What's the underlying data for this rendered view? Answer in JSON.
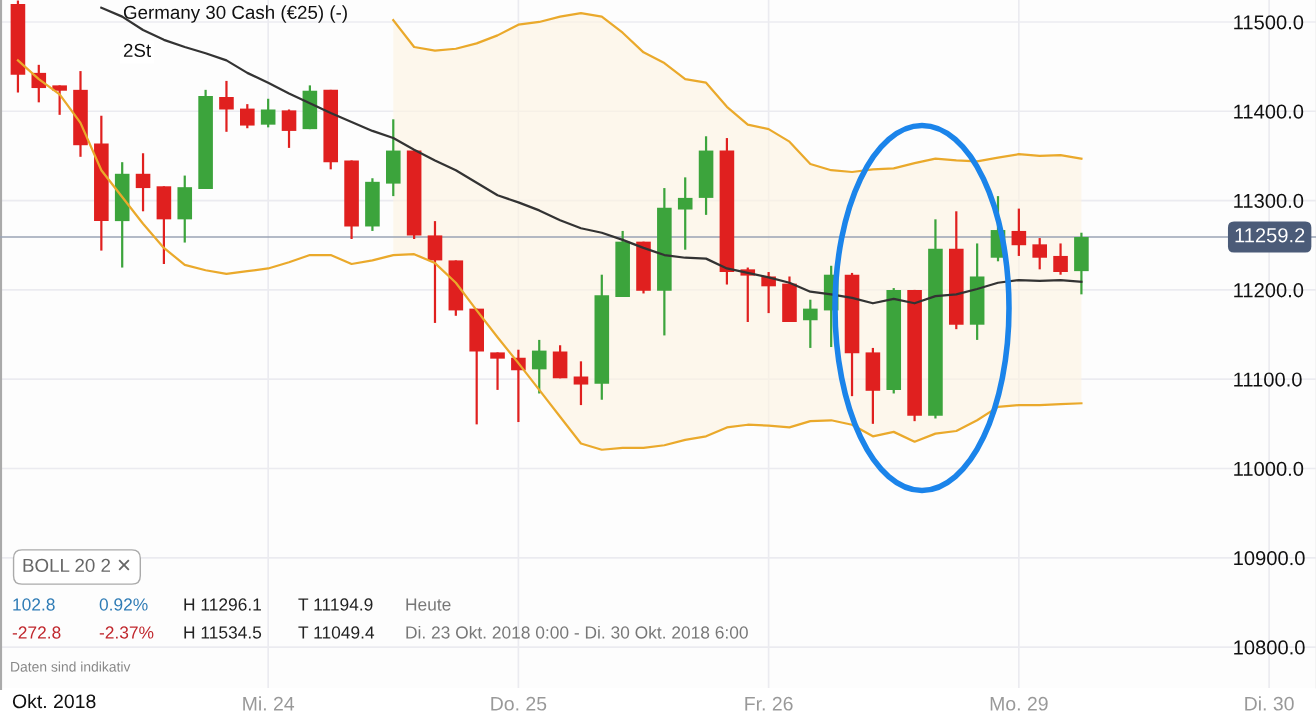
{
  "chart_data": {
    "type": "candlestick",
    "title": "Germany 30 Cash (€25) (-)",
    "subtitle": "2St",
    "categories": [
      null,
      null,
      null,
      null,
      null,
      null,
      null,
      null,
      null,
      null,
      null,
      null,
      "Mi. 24",
      null,
      null,
      null,
      null,
      null,
      null,
      null,
      null,
      null,
      null,
      null,
      "Do. 25",
      null,
      null,
      null,
      null,
      null,
      null,
      null,
      null,
      null,
      null,
      null,
      "Fr. 26",
      null,
      null,
      null,
      null,
      null,
      null,
      null,
      null,
      null,
      null,
      null,
      "Mo. 29",
      null,
      null,
      null,
      null,
      null,
      null,
      null,
      null,
      null,
      null,
      null,
      "Di. 30"
    ],
    "ohlc": [
      [
        11520,
        11524,
        11421,
        11441
      ],
      [
        11443,
        11452,
        11410,
        11426
      ],
      [
        11429,
        11429,
        11396,
        11423
      ],
      [
        11424,
        11445,
        11349,
        11362
      ],
      [
        11364,
        11395,
        11244,
        11277
      ],
      [
        11277,
        11343,
        11225,
        11330
      ],
      [
        11330,
        11353,
        11288,
        11314
      ],
      [
        11316,
        11316,
        11229,
        11279
      ],
      [
        11279,
        11328,
        11253,
        11315
      ],
      [
        11313,
        11424,
        11313,
        11417
      ],
      [
        11416,
        11434,
        11377,
        11402
      ],
      [
        11403,
        11408,
        11381,
        11384
      ],
      [
        11385,
        11414,
        11382,
        11402
      ],
      [
        11401,
        11402,
        11359,
        11378
      ],
      [
        11380,
        11429,
        11380,
        11423
      ],
      [
        11424,
        11424,
        11335,
        11343
      ],
      [
        11345,
        11345,
        11257,
        11271
      ],
      [
        11271,
        11325,
        11266,
        11321
      ],
      [
        11319,
        11391,
        11305,
        11356
      ],
      [
        11356,
        11356,
        11257,
        11261
      ],
      [
        11261,
        11277,
        11163,
        11233
      ],
      [
        11233,
        11233,
        11171,
        11177
      ],
      [
        11179,
        11179,
        11049.4,
        11131
      ],
      [
        11130,
        11130,
        11088,
        11123
      ],
      [
        11124,
        11133,
        11052,
        11110
      ],
      [
        11111,
        11144,
        11084,
        11132
      ],
      [
        11131,
        11138,
        11101,
        11101
      ],
      [
        11103,
        11120,
        11071,
        11094
      ],
      [
        11095,
        11217,
        11077,
        11194
      ],
      [
        11192,
        11266,
        11192,
        11254
      ],
      [
        11254,
        11254,
        11196,
        11199
      ],
      [
        11199,
        11314,
        11149,
        11292
      ],
      [
        11290,
        11326,
        11245,
        11303
      ],
      [
        11303,
        11372,
        11284,
        11356
      ],
      [
        11356,
        11370,
        11206,
        11220
      ],
      [
        11223,
        11225,
        11164,
        11216
      ],
      [
        11215,
        11220,
        11174,
        11204
      ],
      [
        11207,
        11215,
        11164,
        11164
      ],
      [
        11166,
        11189,
        11135,
        11179
      ],
      [
        11177,
        11227,
        11136,
        11217
      ],
      [
        11217,
        11219,
        11081,
        11129
      ],
      [
        11130,
        11135,
        11050,
        11087
      ],
      [
        11088,
        11202,
        11084,
        11200
      ],
      [
        11200,
        11200,
        11053,
        11059
      ],
      [
        11059,
        11279,
        11056,
        11246
      ],
      [
        11246,
        11288,
        11156,
        11161
      ],
      [
        11161,
        11252,
        11144,
        11215
      ],
      [
        11236,
        11305,
        11232,
        11267
      ],
      [
        11266,
        11291,
        11238,
        11250
      ],
      [
        11251,
        11258,
        11223,
        11236
      ],
      [
        11238,
        11252,
        11217,
        11220
      ],
      [
        11221,
        11264,
        11195,
        11259.2
      ],
      null,
      null,
      null,
      null,
      null,
      null,
      null,
      null,
      null
    ],
    "colors": [
      "#e0201f",
      "#e0201f",
      "#e0201f",
      "#e0201f",
      "#e0201f",
      "#3ca43c",
      "#e0201f",
      "#e0201f",
      "#3ca43c",
      "#3ca43c",
      "#e0201f",
      "#e0201f",
      "#3ca43c",
      "#e0201f",
      "#3ca43c",
      "#e0201f",
      "#e0201f",
      "#3ca43c",
      "#3ca43c",
      "#e0201f",
      "#e0201f",
      "#e0201f",
      "#e0201f",
      "#e0201f",
      "#e0201f",
      "#3ca43c",
      "#e0201f",
      "#e0201f",
      "#3ca43c",
      "#3ca43c",
      "#e0201f",
      "#3ca43c",
      "#3ca43c",
      "#3ca43c",
      "#e0201f",
      "#e0201f",
      "#e0201f",
      "#e0201f",
      "#3ca43c",
      "#3ca43c",
      "#e0201f",
      "#e0201f",
      "#3ca43c",
      "#e0201f",
      "#3ca43c",
      "#e0201f",
      "#3ca43c",
      "#3ca43c",
      "#e0201f",
      "#e0201f",
      "#e0201f",
      "#3ca43c",
      null,
      null,
      null,
      null,
      null,
      null,
      null,
      null,
      null
    ],
    "series": [
      {
        "type": "line",
        "color": "#eaa92b",
        "values": [
          null,
          null,
          null,
          null,
          null,
          null,
          null,
          null,
          null,
          null,
          null,
          null,
          null,
          null,
          null,
          null,
          null,
          null,
          11502,
          11472,
          11468,
          11470,
          11476,
          11485,
          11497,
          11500,
          11506,
          11510,
          11506,
          11488,
          11466,
          11454,
          11436,
          11432,
          11405,
          11385,
          11380,
          11366,
          11341,
          11334,
          11332,
          11335,
          11336,
          11342,
          11347,
          11345,
          11344,
          11348,
          11352,
          11350,
          11351,
          11347,
          null,
          null,
          null,
          null,
          null,
          null,
          null,
          null,
          null
        ]
      },
      {
        "type": "line",
        "color": "#333333",
        "values": [
          null,
          null,
          null,
          null,
          11516,
          11506,
          11491,
          11480,
          11472,
          11465,
          11457,
          11443,
          11432,
          11420,
          11409,
          11398,
          11388,
          11378,
          11370,
          11357,
          11345,
          11334,
          11320,
          11306,
          11298,
          11289,
          11278,
          11269,
          11264,
          11256,
          11247,
          11239,
          11236,
          11235,
          11224,
          11219,
          11214,
          11208,
          11198,
          11195,
          11191,
          11185,
          11190,
          11185,
          11193,
          11195,
          11201,
          11208,
          11211,
          11210,
          11211,
          11209,
          null,
          null,
          null,
          null,
          null,
          null,
          null,
          null,
          null
        ],
        "upper": [
          null,
          null,
          null,
          null,
          null,
          null,
          null,
          null,
          null,
          null,
          null,
          null,
          null,
          null,
          null,
          null,
          null,
          null,
          11502,
          11472,
          11468,
          11470,
          11476,
          11485,
          11497,
          11500,
          11506,
          11510,
          11506,
          11488,
          11466,
          11454,
          11436,
          11432,
          11405,
          11385,
          11380,
          11366,
          11341,
          11334,
          11332,
          11335,
          11336,
          11342,
          11347,
          11345,
          11344,
          11348,
          11352,
          11350,
          11351,
          11347,
          null,
          null,
          null,
          null,
          null,
          null,
          null,
          null,
          null
        ],
        "lower": [
          null,
          null,
          null,
          null,
          null,
          null,
          null,
          null,
          null,
          null,
          null,
          null,
          null,
          null,
          null,
          null,
          null,
          null,
          11239,
          11240,
          11230,
          11208,
          11177,
          11147,
          11118,
          11088,
          11058,
          11028,
          11021,
          11023,
          11023,
          11026,
          11032,
          11036,
          11046,
          11049,
          11048,
          11046,
          11053,
          11054,
          11049,
          11036,
          11041,
          11030,
          11039,
          11042,
          11054,
          11069,
          11071,
          11071,
          11072,
          11073,
          null,
          null,
          null,
          null,
          null,
          null,
          null,
          null,
          null
        ]
      },
      {
        "type": "line",
        "color": "#eaa92b",
        "values": [
          11457,
          11436,
          11419,
          11387,
          11334,
          11304,
          11274,
          11247,
          11228,
          11222,
          11218,
          11221,
          11224,
          11231,
          11239,
          11239,
          11229,
          11233,
          11239,
          11240,
          11230,
          11208,
          11177,
          11147,
          11118,
          11088,
          11058,
          11028,
          11021,
          11023,
          11023,
          11026,
          11032,
          11036,
          11046,
          11049,
          11048,
          11046,
          11053,
          11054,
          11049,
          11036,
          11041,
          11030,
          11039,
          11042,
          11054,
          11069,
          11071,
          11071,
          11072,
          11073,
          null,
          null,
          null,
          null,
          null,
          null,
          null,
          null,
          null
        ]
      }
    ],
    "ylim": [
      10754.2,
      11524.6
    ],
    "yticks": [
      {
        "value": 10800,
        "label": "10800.0"
      },
      {
        "value": 10900,
        "label": "10900.0"
      },
      {
        "value": 11000,
        "label": "11000.0"
      },
      {
        "value": 11100,
        "label": "11100.0"
      },
      {
        "value": 11200,
        "label": "11200.0"
      },
      {
        "value": 11300,
        "label": "11300.0"
      },
      {
        "value": 11400,
        "label": "11400.0"
      },
      {
        "value": 11500,
        "label": "11500.0"
      }
    ],
    "grid": true,
    "ref_lines": [
      {
        "axis": "y",
        "value": 11259.2,
        "label": "11259.2",
        "color": "#9aa3b5"
      }
    ],
    "annotations": [
      "BOLL 20 2 ✕",
      "102.8",
      "0.92%",
      "H 11296.1",
      "T 11194.9",
      "Heute",
      "-272.8",
      "-2.37%",
      "H 11534.5",
      "T 11049.4",
      "Di. 23 Okt. 2018 0:00 - Di. 30 Okt. 2018 6:00",
      "Daten sind indikativ",
      "Okt. 2018"
    ]
  }
}
